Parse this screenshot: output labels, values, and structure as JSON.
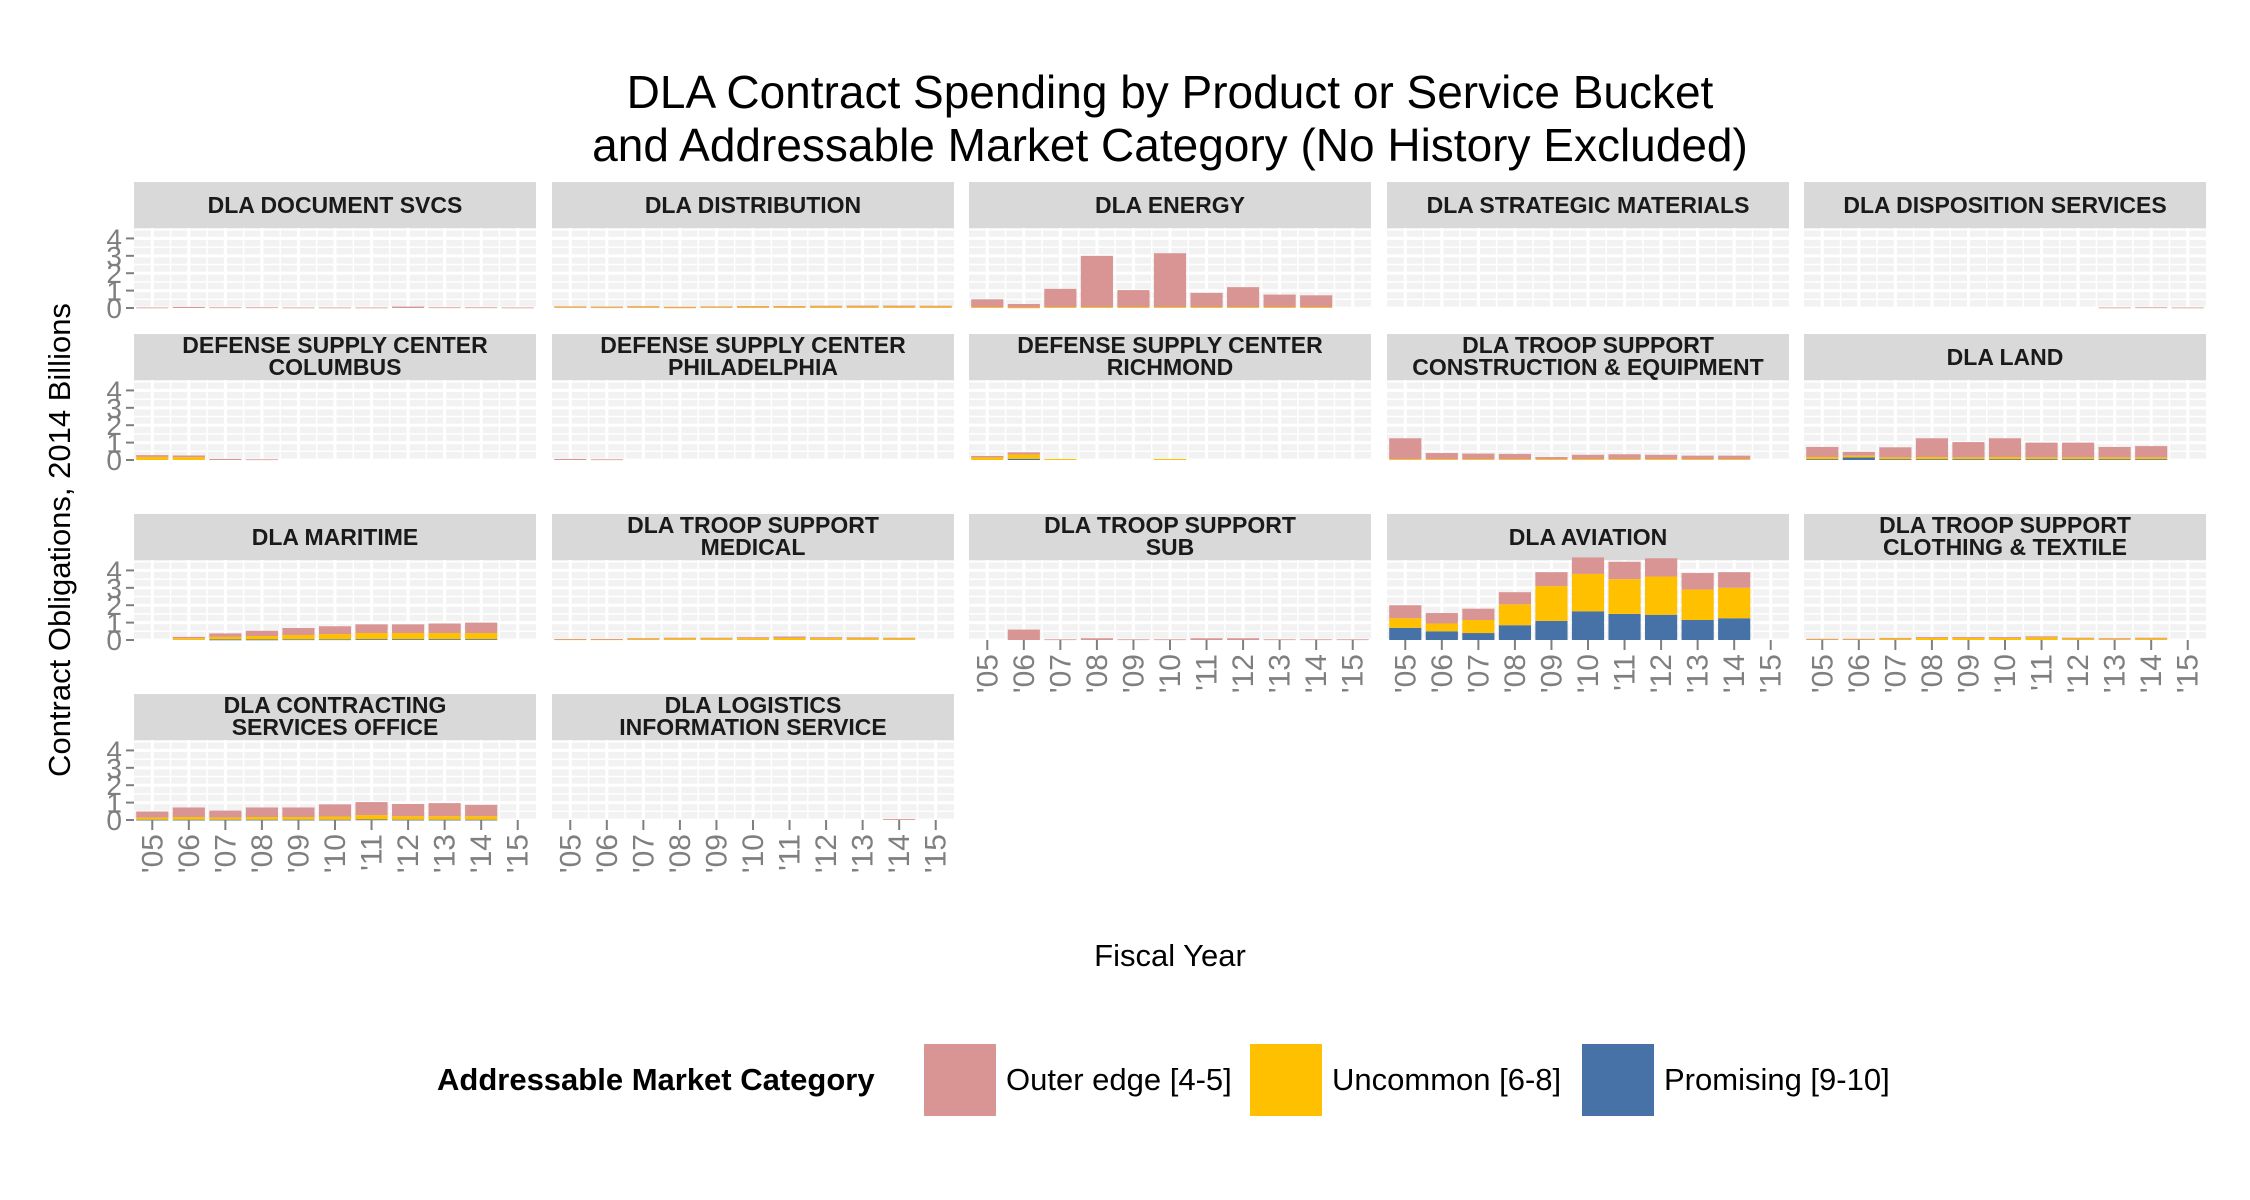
{
  "chart_data": {
    "type": "bar",
    "stacked": true,
    "title": "DLA Contract Spending by Product or Service Bucket\nand Addressable Market Category (No History Excluded)",
    "xlabel": "Fiscal Year",
    "ylabel": "Contract Obligations, 2014 Billions",
    "categories": [
      "'05",
      "'06",
      "'07",
      "'08",
      "'09",
      "'10",
      "'11",
      "'12",
      "'13",
      "'14",
      "'15"
    ],
    "yticks": [
      0,
      1,
      2,
      3,
      4
    ],
    "ylim": [
      0,
      4.6
    ],
    "grid": true,
    "legend": {
      "title": "Addressable Market Category",
      "position": "bottom",
      "items": [
        {
          "label": "Outer edge [4-5]",
          "color": "#D99594"
        },
        {
          "label": "Uncommon [6-8]",
          "color": "#FFC000"
        },
        {
          "label": "Promising [9-10]",
          "color": "#4672A8"
        }
      ]
    },
    "series_order": [
      "outer",
      "uncommon",
      "promising"
    ],
    "colors": {
      "outer": "#D99594",
      "uncommon": "#FFC000",
      "promising": "#4672A8"
    },
    "panels": [
      {
        "title": "DLA DOCUMENT SVCS",
        "outer": [
          0.03,
          0.06,
          0.04,
          0.04,
          0.03,
          0.03,
          0.03,
          0.08,
          0.04,
          0.04,
          0.03
        ],
        "uncommon": [
          0,
          0,
          0,
          0,
          0,
          0,
          0,
          0,
          0,
          0,
          0
        ],
        "promising": [
          0,
          0,
          0,
          0,
          0,
          0,
          0,
          0,
          0,
          0,
          0
        ]
      },
      {
        "title": "DLA DISTRIBUTION",
        "outer": [
          0.04,
          0.04,
          0.05,
          0.04,
          0.04,
          0.05,
          0.05,
          0.06,
          0.07,
          0.07,
          0.06
        ],
        "uncommon": [
          0.05,
          0.04,
          0.05,
          0.03,
          0.05,
          0.06,
          0.06,
          0.07,
          0.07,
          0.07,
          0.07
        ],
        "promising": [
          0,
          0,
          0,
          0,
          0,
          0,
          0,
          0,
          0,
          0,
          0
        ]
      },
      {
        "title": "DLA ENERGY",
        "outer": [
          0.45,
          0.2,
          1.05,
          2.95,
          0.98,
          3.1,
          0.82,
          1.15,
          0.72,
          0.68,
          0
        ],
        "uncommon": [
          0.05,
          0.03,
          0.05,
          0.05,
          0.05,
          0.05,
          0.05,
          0.05,
          0.05,
          0.05,
          0
        ],
        "promising": [
          0,
          0,
          0,
          0,
          0,
          0,
          0,
          0,
          0,
          0,
          0
        ]
      },
      {
        "title": "DLA STRATEGIC MATERIALS",
        "outer": [
          0,
          0,
          0,
          0,
          0,
          0,
          0,
          0,
          0,
          0,
          0
        ],
        "uncommon": [
          0,
          0,
          0,
          0,
          0,
          0,
          0,
          0,
          0,
          0,
          0
        ],
        "promising": [
          0,
          0,
          0,
          0,
          0,
          0,
          0,
          0,
          0,
          0,
          0
        ]
      },
      {
        "title": "DLA DISPOSITION SERVICES",
        "outer": [
          0,
          0,
          0,
          0,
          0,
          0,
          0,
          0,
          0.03,
          0.04,
          0.03
        ],
        "uncommon": [
          0,
          0,
          0,
          0,
          0,
          0,
          0,
          0,
          0,
          0,
          0
        ],
        "promising": [
          0,
          0,
          0,
          0,
          0,
          0,
          0,
          0,
          0,
          0,
          0
        ]
      },
      {
        "title": "DEFENSE SUPPLY CENTER\nCOLUMBUS",
        "outer": [
          0.1,
          0.1,
          0.06,
          0.04,
          0,
          0,
          0,
          0,
          0,
          0,
          0
        ],
        "uncommon": [
          0.18,
          0.16,
          0,
          0,
          0,
          0,
          0,
          0,
          0,
          0,
          0
        ],
        "promising": [
          0,
          0,
          0,
          0,
          0,
          0,
          0,
          0,
          0,
          0,
          0
        ]
      },
      {
        "title": "DEFENSE SUPPLY CENTER\nPHILADELPHIA",
        "outer": [
          0.06,
          0.04,
          0,
          0,
          0,
          0,
          0,
          0,
          0,
          0,
          0
        ],
        "uncommon": [
          0,
          0,
          0,
          0,
          0,
          0,
          0,
          0,
          0,
          0,
          0
        ],
        "promising": [
          0,
          0,
          0,
          0,
          0,
          0,
          0,
          0,
          0,
          0,
          0
        ]
      },
      {
        "title": "DEFENSE SUPPLY CENTER\nRICHMOND",
        "outer": [
          0.08,
          0.12,
          0,
          0,
          0,
          0,
          0,
          0,
          0,
          0,
          0
        ],
        "uncommon": [
          0.15,
          0.25,
          0.06,
          0,
          0,
          0.06,
          0,
          0,
          0,
          0,
          0
        ],
        "promising": [
          0,
          0.07,
          0,
          0,
          0,
          0,
          0,
          0,
          0,
          0,
          0
        ]
      },
      {
        "title": "DLA TROOP SUPPORT\nCONSTRUCTION & EQUIPMENT",
        "outer": [
          1.2,
          0.35,
          0.32,
          0.3,
          0.12,
          0.25,
          0.28,
          0.25,
          0.2,
          0.2,
          0
        ],
        "uncommon": [
          0.05,
          0.05,
          0.05,
          0.05,
          0.05,
          0.05,
          0.05,
          0.05,
          0.05,
          0.05,
          0
        ],
        "promising": [
          0,
          0,
          0,
          0,
          0,
          0,
          0,
          0,
          0,
          0,
          0
        ]
      },
      {
        "title": "DLA LAND",
        "outer": [
          0.58,
          0.22,
          0.58,
          1.08,
          0.88,
          1.08,
          0.85,
          0.85,
          0.6,
          0.65,
          0
        ],
        "uncommon": [
          0.12,
          0.1,
          0.1,
          0.12,
          0.1,
          0.12,
          0.1,
          0.1,
          0.1,
          0.1,
          0
        ],
        "promising": [
          0.05,
          0.15,
          0.05,
          0.05,
          0.05,
          0.05,
          0.05,
          0.05,
          0.05,
          0.05,
          0
        ]
      },
      {
        "title": "DLA MARITIME",
        "outer": [
          0,
          0.08,
          0.2,
          0.3,
          0.4,
          0.45,
          0.5,
          0.5,
          0.55,
          0.6,
          0
        ],
        "uncommon": [
          0,
          0.1,
          0.15,
          0.2,
          0.25,
          0.3,
          0.35,
          0.35,
          0.35,
          0.35,
          0
        ],
        "promising": [
          0,
          0,
          0.03,
          0.03,
          0.04,
          0.04,
          0.05,
          0.05,
          0.05,
          0.05,
          0
        ]
      },
      {
        "title": "DLA TROOP SUPPORT\nMEDICAL",
        "outer": [
          0.02,
          0.02,
          0.04,
          0.05,
          0.05,
          0.06,
          0.08,
          0.06,
          0.06,
          0.05,
          0
        ],
        "uncommon": [
          0.04,
          0.04,
          0.06,
          0.08,
          0.08,
          0.1,
          0.12,
          0.1,
          0.09,
          0.08,
          0
        ],
        "promising": [
          0,
          0,
          0,
          0,
          0,
          0,
          0,
          0,
          0,
          0,
          0
        ]
      },
      {
        "title": "DLA TROOP SUPPORT\nSUB",
        "outer": [
          0,
          0.6,
          0.04,
          0.1,
          0.04,
          0.04,
          0.1,
          0.1,
          0.04,
          0.04,
          0.04
        ],
        "uncommon": [
          0,
          0,
          0,
          0,
          0,
          0,
          0,
          0,
          0,
          0,
          0
        ],
        "promising": [
          0,
          0,
          0,
          0,
          0,
          0,
          0,
          0,
          0,
          0,
          0
        ]
      },
      {
        "title": "DLA AVIATION",
        "outer": [
          0.75,
          0.6,
          0.65,
          0.7,
          0.8,
          0.95,
          1.0,
          1.05,
          0.95,
          0.9,
          0
        ],
        "uncommon": [
          0.55,
          0.45,
          0.75,
          1.2,
          2.0,
          2.15,
          2.0,
          2.2,
          1.75,
          1.75,
          0
        ],
        "promising": [
          0.7,
          0.5,
          0.4,
          0.85,
          1.1,
          1.65,
          1.5,
          1.45,
          1.15,
          1.25,
          0
        ]
      },
      {
        "title": "DLA TROOP SUPPORT\nCLOTHING & TEXTILE",
        "outer": [
          0.02,
          0.02,
          0.04,
          0.05,
          0.05,
          0.05,
          0.06,
          0.05,
          0.05,
          0.05,
          0
        ],
        "uncommon": [
          0.05,
          0.05,
          0.08,
          0.12,
          0.12,
          0.12,
          0.15,
          0.08,
          0.05,
          0.08,
          0
        ],
        "promising": [
          0,
          0,
          0,
          0,
          0,
          0,
          0,
          0,
          0,
          0,
          0
        ]
      },
      {
        "title": "DLA CONTRACTING\nSERVICES OFFICE",
        "outer": [
          0.35,
          0.55,
          0.4,
          0.55,
          0.55,
          0.7,
          0.75,
          0.7,
          0.75,
          0.65,
          0
        ],
        "uncommon": [
          0.12,
          0.15,
          0.12,
          0.15,
          0.15,
          0.18,
          0.25,
          0.2,
          0.2,
          0.2,
          0
        ],
        "promising": [
          0.02,
          0.02,
          0.02,
          0.02,
          0.02,
          0.02,
          0.03,
          0.02,
          0.02,
          0.02,
          0
        ]
      },
      {
        "title": "DLA LOGISTICS\nINFORMATION SERVICE",
        "outer": [
          0,
          0,
          0,
          0,
          0,
          0,
          0,
          0,
          0,
          0.05,
          0
        ],
        "uncommon": [
          0,
          0,
          0,
          0,
          0,
          0,
          0,
          0,
          0,
          0,
          0
        ],
        "promising": [
          0,
          0,
          0,
          0,
          0,
          0,
          0,
          0,
          0,
          0,
          0
        ]
      }
    ]
  }
}
